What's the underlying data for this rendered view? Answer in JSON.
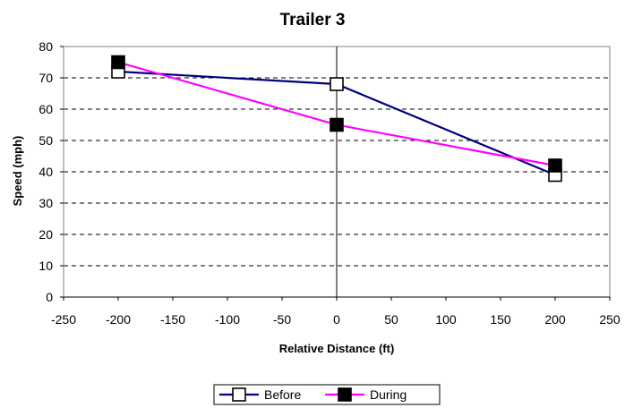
{
  "chart_data": {
    "type": "line",
    "title": "Trailer 3",
    "xlabel": "Relative Distance (ft)",
    "ylabel": "Speed (mph)",
    "xlim": [
      -250,
      250
    ],
    "ylim": [
      0,
      80
    ],
    "x_ticks": [
      -250,
      -200,
      -150,
      -100,
      -50,
      0,
      50,
      100,
      150,
      200,
      250
    ],
    "y_ticks": [
      0,
      10,
      20,
      30,
      40,
      50,
      60,
      70,
      80
    ],
    "grid": "horizontal-dashed",
    "legend_position": "bottom",
    "series": [
      {
        "name": "Before",
        "color": "#000080",
        "marker": "hollow-square",
        "points": [
          {
            "x": -200,
            "y": 72
          },
          {
            "x": 0,
            "y": 68
          },
          {
            "x": 200,
            "y": 39
          }
        ]
      },
      {
        "name": "During",
        "color": "#ff00ff",
        "marker": "filled-square",
        "points": [
          {
            "x": -200,
            "y": 75
          },
          {
            "x": 0,
            "y": 55
          },
          {
            "x": 200,
            "y": 42
          }
        ]
      }
    ]
  }
}
